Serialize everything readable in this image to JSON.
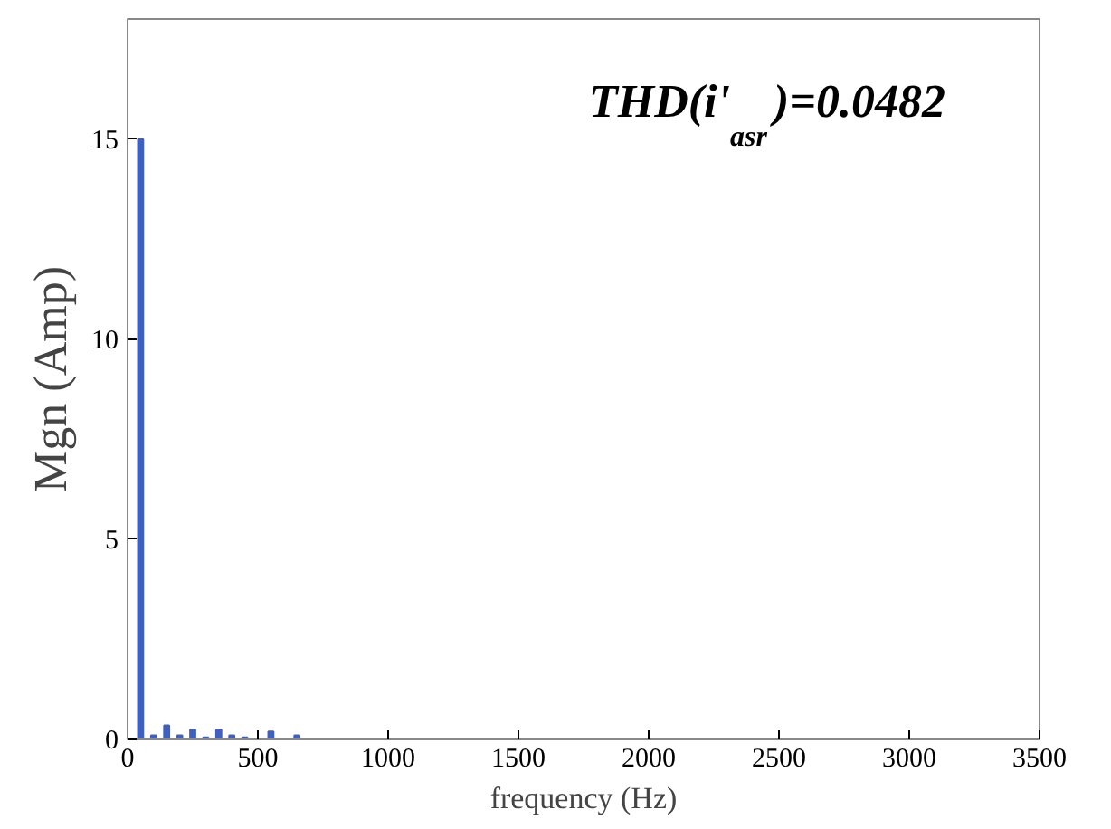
{
  "chart_data": {
    "type": "bar",
    "x": [
      50,
      100,
      150,
      200,
      250,
      300,
      350,
      400,
      450,
      550,
      650
    ],
    "series": [
      {
        "color": "#4060c0",
        "values": [
          15,
          0.1,
          0.35,
          0.1,
          0.25,
          0.05,
          0.25,
          0.1,
          0.05,
          0.2,
          0.1
        ]
      }
    ],
    "xlim": [
      0,
      3500
    ],
    "xticks": [
      0,
      500,
      1000,
      1500,
      2000,
      2500,
      3000,
      3500
    ],
    "ylim": [
      0,
      18
    ],
    "yticks": [
      0,
      5,
      10,
      15
    ],
    "xlabel": "frequency (Hz)",
    "ylabel": "Mgn (Amp)",
    "annotations": [
      "THD(i'$_{asr}$)=0.0482"
    ],
    "grid": false
  }
}
